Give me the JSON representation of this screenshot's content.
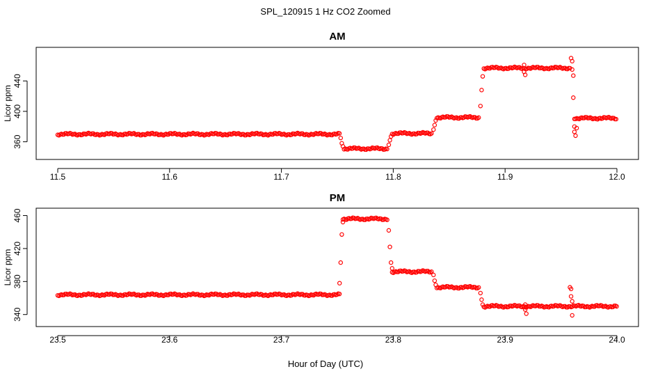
{
  "title": "SPL_120915  1 Hz CO2 Zoomed",
  "xlabel": "Hour of Day (UTC)",
  "chart_data": [
    {
      "type": "scatter",
      "title": "AM",
      "xlabel": "",
      "ylabel": "Licor ppm",
      "xlim": [
        11.5,
        12.0
      ],
      "ylim": [
        345,
        475
      ],
      "xticks": [
        "11.5",
        "11.6",
        "11.7",
        "11.8",
        "11.9",
        "12.0"
      ],
      "yticks": [
        "360",
        "400",
        "440"
      ],
      "color": "#ff0000",
      "marker": "open-circle",
      "segments": [
        {
          "x0": 11.5,
          "x1": 11.752,
          "y": 370
        },
        {
          "x0": 11.756,
          "x1": 11.795,
          "y": 351
        },
        {
          "x0": 11.799,
          "x1": 11.835,
          "y": 371
        },
        {
          "x0": 11.839,
          "x1": 11.877,
          "y": 392
        },
        {
          "x0": 11.881,
          "x1": 11.959,
          "y": 457
        },
        {
          "x0": 11.963,
          "x1": 12.0,
          "y": 391
        }
      ],
      "points": [
        {
          "x": 11.753,
          "y": 365
        },
        {
          "x": 11.754,
          "y": 358
        },
        {
          "x": 11.755,
          "y": 354
        },
        {
          "x": 11.796,
          "y": 356
        },
        {
          "x": 11.797,
          "y": 362
        },
        {
          "x": 11.798,
          "y": 367
        },
        {
          "x": 11.836,
          "y": 376
        },
        {
          "x": 11.837,
          "y": 382
        },
        {
          "x": 11.838,
          "y": 388
        },
        {
          "x": 11.878,
          "y": 407
        },
        {
          "x": 11.879,
          "y": 428
        },
        {
          "x": 11.88,
          "y": 446
        },
        {
          "x": 11.917,
          "y": 461
        },
        {
          "x": 11.917,
          "y": 452
        },
        {
          "x": 11.918,
          "y": 448
        },
        {
          "x": 11.959,
          "y": 470
        },
        {
          "x": 11.96,
          "y": 466
        },
        {
          "x": 11.96,
          "y": 455
        },
        {
          "x": 11.961,
          "y": 447
        },
        {
          "x": 11.961,
          "y": 418
        },
        {
          "x": 11.962,
          "y": 390
        },
        {
          "x": 11.962,
          "y": 380
        },
        {
          "x": 11.962,
          "y": 373
        },
        {
          "x": 11.963,
          "y": 368
        },
        {
          "x": 11.964,
          "y": 378
        }
      ]
    },
    {
      "type": "scatter",
      "title": "PM",
      "xlabel": "",
      "ylabel": "Licor ppm",
      "xlim": [
        23.5,
        24.0
      ],
      "ylim": [
        333,
        463
      ],
      "xticks": [
        "23.5",
        "23.6",
        "23.7",
        "23.8",
        "23.9",
        "24.0"
      ],
      "yticks": [
        "340",
        "380",
        "420",
        "460"
      ],
      "color": "#ff0000",
      "marker": "open-circle",
      "segments": [
        {
          "x0": 23.5,
          "x1": 23.752,
          "y": 364
        },
        {
          "x0": 23.755,
          "x1": 23.795,
          "y": 456
        },
        {
          "x0": 23.799,
          "x1": 23.835,
          "y": 392
        },
        {
          "x0": 23.839,
          "x1": 23.877,
          "y": 373
        },
        {
          "x0": 23.881,
          "x1": 24.0,
          "y": 350
        }
      ],
      "points": [
        {
          "x": 23.752,
          "y": 378
        },
        {
          "x": 23.753,
          "y": 403
        },
        {
          "x": 23.754,
          "y": 437
        },
        {
          "x": 23.755,
          "y": 452
        },
        {
          "x": 23.796,
          "y": 442
        },
        {
          "x": 23.797,
          "y": 422
        },
        {
          "x": 23.798,
          "y": 403
        },
        {
          "x": 23.799,
          "y": 396
        },
        {
          "x": 23.836,
          "y": 388
        },
        {
          "x": 23.837,
          "y": 381
        },
        {
          "x": 23.838,
          "y": 376
        },
        {
          "x": 23.878,
          "y": 366
        },
        {
          "x": 23.879,
          "y": 358
        },
        {
          "x": 23.88,
          "y": 352
        },
        {
          "x": 23.918,
          "y": 352
        },
        {
          "x": 23.918,
          "y": 346
        },
        {
          "x": 23.919,
          "y": 341
        },
        {
          "x": 23.958,
          "y": 373
        },
        {
          "x": 23.959,
          "y": 371
        },
        {
          "x": 23.959,
          "y": 362
        },
        {
          "x": 23.96,
          "y": 356
        },
        {
          "x": 23.96,
          "y": 339
        }
      ]
    }
  ]
}
